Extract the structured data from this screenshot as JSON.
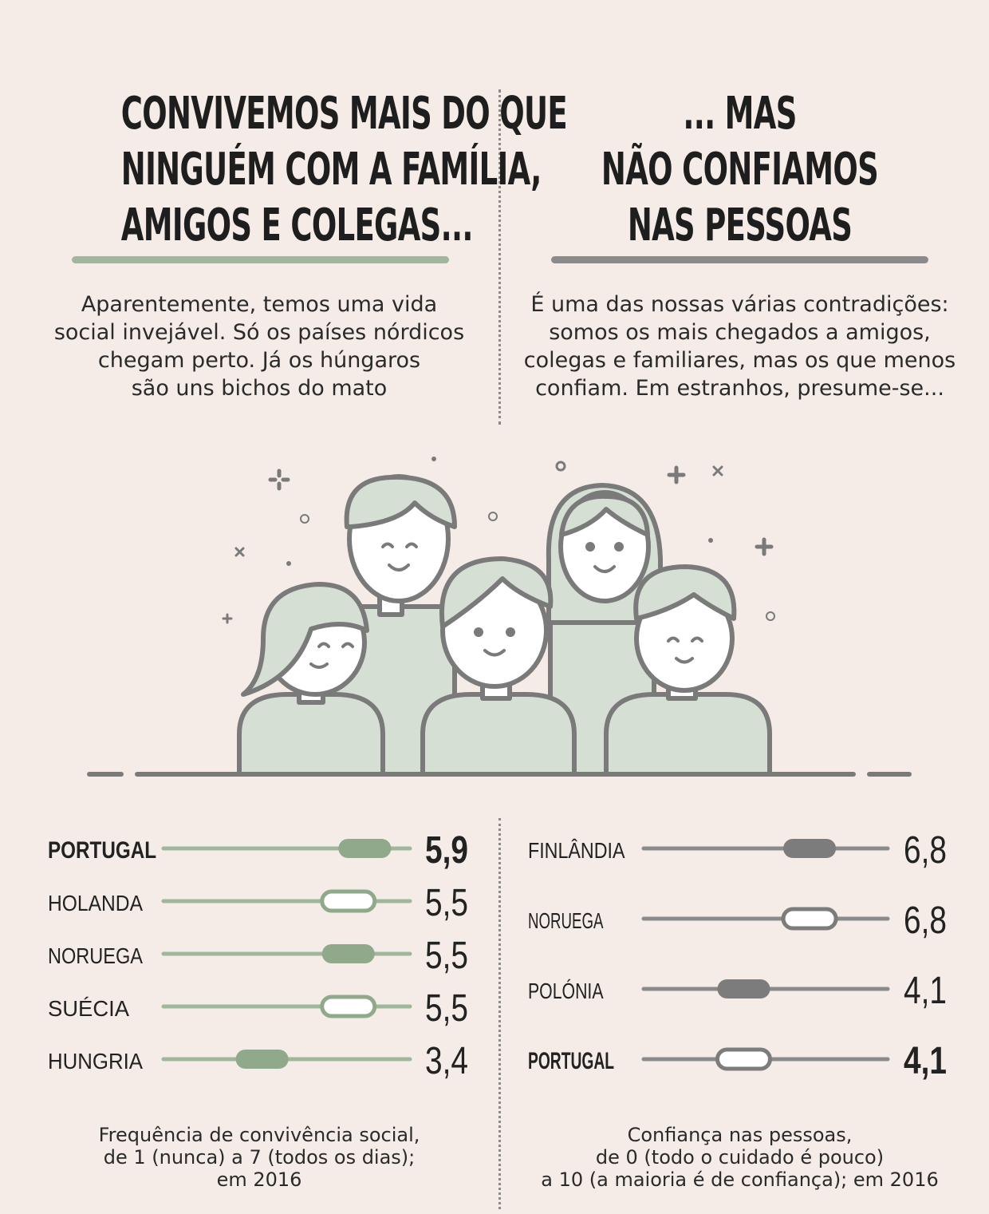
{
  "left": {
    "title_lines": [
      "CONVIVEMOS MAIS DO QUE",
      "NINGUÉM COM A FAMÍLIA,",
      "AMIGOS E COLEGAS..."
    ],
    "lead_lines": [
      "Aparentemente, temos uma vida",
      "social invejável. Só os países nórdicos",
      "chegam perto. Já os húngaros",
      "são uns bichos do mato"
    ],
    "note_lines": [
      "Frequência de convivência social,",
      "de 1 (nunca) a 7 (todos os dias);",
      "em 2016"
    ]
  },
  "right": {
    "title_lines": [
      "... MAS",
      "NÃO CONFIAMOS",
      "NAS PESSOAS"
    ],
    "lead_lines": [
      "É uma das nossas várias contradições:",
      "somos os mais chegados a amigos,",
      "colegas e familiares, mas os que menos",
      "confiam. Em estranhos, presume-se..."
    ],
    "note_lines": [
      "Confiança nas pessoas,",
      "de 0 (todo o cuidado é pouco)",
      "a 10 (a maioria é de confiança); em 2016"
    ]
  },
  "colors": {
    "green": "#a0b79b",
    "green_fill": "#8fa98a",
    "gray": "#8b8b8b",
    "gray_fill": "#7c7c7c",
    "skin_bg": "#d6dfd3",
    "line": "#7a7a7a"
  },
  "chart_data": [
    {
      "type": "dot",
      "xlim": [
        1,
        7
      ],
      "categories": [
        "PORTUGAL",
        "HOLANDA",
        "NORUEGA",
        "SUÉCIA",
        "HUNGRIA"
      ],
      "values": [
        5.9,
        5.5,
        5.5,
        5.5,
        3.4
      ],
      "value_labels": [
        "5,9",
        "5,5",
        "5,5",
        "5,5",
        "3,4"
      ],
      "highlight": [
        true,
        false,
        false,
        false,
        false
      ],
      "marker_filled": [
        true,
        false,
        true,
        false,
        true
      ]
    },
    {
      "type": "dot",
      "xlim": [
        0,
        10
      ],
      "categories": [
        "FINLÂNDIA",
        "NORUEGA",
        "POLÓNIA",
        "PORTUGAL"
      ],
      "values": [
        6.8,
        6.8,
        4.1,
        4.1
      ],
      "value_labels": [
        "6,8",
        "6,8",
        "4,1",
        "4,1"
      ],
      "highlight": [
        false,
        false,
        false,
        true
      ],
      "marker_filled": [
        true,
        false,
        true,
        false
      ]
    }
  ]
}
